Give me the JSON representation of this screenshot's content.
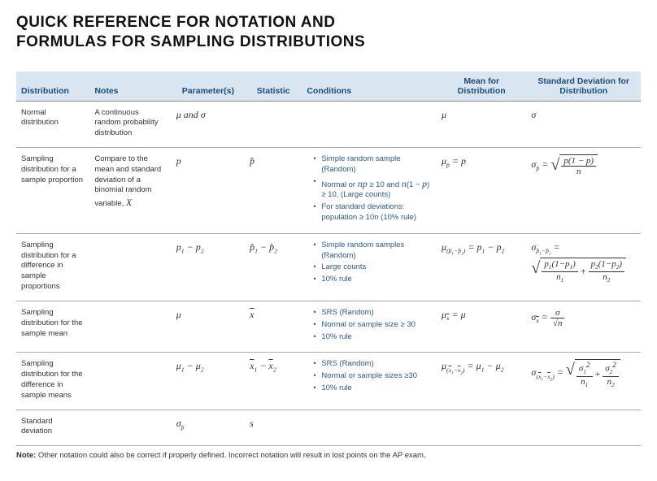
{
  "title_line1": "QUICK REFERENCE FOR NOTATION AND",
  "title_line2": "FORMULAS FOR SAMPLING DISTRIBUTIONS",
  "colors": {
    "header_bg": "#d9e6f2",
    "header_text": "#1a4b7a",
    "bullet_text": "#2a5a8a",
    "rule": "#aaaaaa",
    "body_text": "#333333"
  },
  "columns": {
    "dist": "Distribution",
    "notes": "Notes",
    "param": "Parameter(s)",
    "stat": "Statistic",
    "cond": "Conditions",
    "mean": "Mean for Distribution",
    "sd": "Standard Deviation for Distribution"
  },
  "rows": {
    "r1": {
      "dist": "Normal distribution",
      "notes": "A continuous random probability distribution",
      "param_html": "μ and σ",
      "stat_html": "",
      "cond": [],
      "mean_html": "μ",
      "sd_html": "σ"
    },
    "r2": {
      "dist": "Sampling distribution for a sample proportion",
      "notes_html": "Compare to the mean and standard deviation of a binomial random variable, X",
      "param_html": "p",
      "stat_html": "p̂",
      "cond": [
        "Simple random sample (Random)",
        "Normal or np ≥ 10 and n(1 − p) ≥ 10, (Large counts)",
        "For standard deviations: population ≥ 10n (10% rule)"
      ],
      "mean_plain": "μ_{p̂} = p",
      "sd_plain": "σ_{p̂} = √( p(1−p) / n )"
    },
    "r3": {
      "dist": "Sampling distribution for a difference in sample proportions",
      "notes": "",
      "param_html": "p₁ − p₂",
      "stat_html": "p̂₁ − p̂₂",
      "cond": [
        "Simple random samples (Random)",
        "Large counts",
        "10% rule"
      ],
      "mean_plain": "μ_{(p̂₁−p̂₂)} = p₁ − p₂",
      "sd_plain": "σ_{p̂₁−p̂₂} = √( p₁(1−p₁)/n₁ + p₂(1−p₂)/n₂ )"
    },
    "r4": {
      "dist": "Sampling distribution for the sample mean",
      "notes": "",
      "param_html": "μ",
      "stat_html": "x̄",
      "cond": [
        "SRS (Random)",
        "Normal or sample size ≥ 30",
        "10% rule"
      ],
      "mean_plain": "μ_{x̄} = μ",
      "sd_plain": "σ_{x̄} = σ / √n"
    },
    "r5": {
      "dist": "Sampling distribution for the difference in sample means",
      "notes": "",
      "param_html": "μ₁ − μ₂",
      "stat_html": "x̄₁ − x̄₂",
      "cond": [
        "SRS (Random)",
        "Normal or sample sizes ≥30",
        "10% rule"
      ],
      "mean_plain": "μ_{(x̄₁−x̄₂)} = μ₁ − μ₂",
      "sd_plain": "σ_{(x̄₁−x̄₂)} = √( σ₁²/n₁ + σ₂²/n₂ )"
    },
    "r6": {
      "dist": "Standard deviation",
      "notes": "",
      "param_html": "σ_{p̂}",
      "stat_html": "s",
      "cond": [],
      "mean_html": "",
      "sd_html": ""
    }
  },
  "note_label": "Note:",
  "note_text": " Other notation could also be correct if properly defined. Incorrect notation will result in lost points on the AP exam."
}
